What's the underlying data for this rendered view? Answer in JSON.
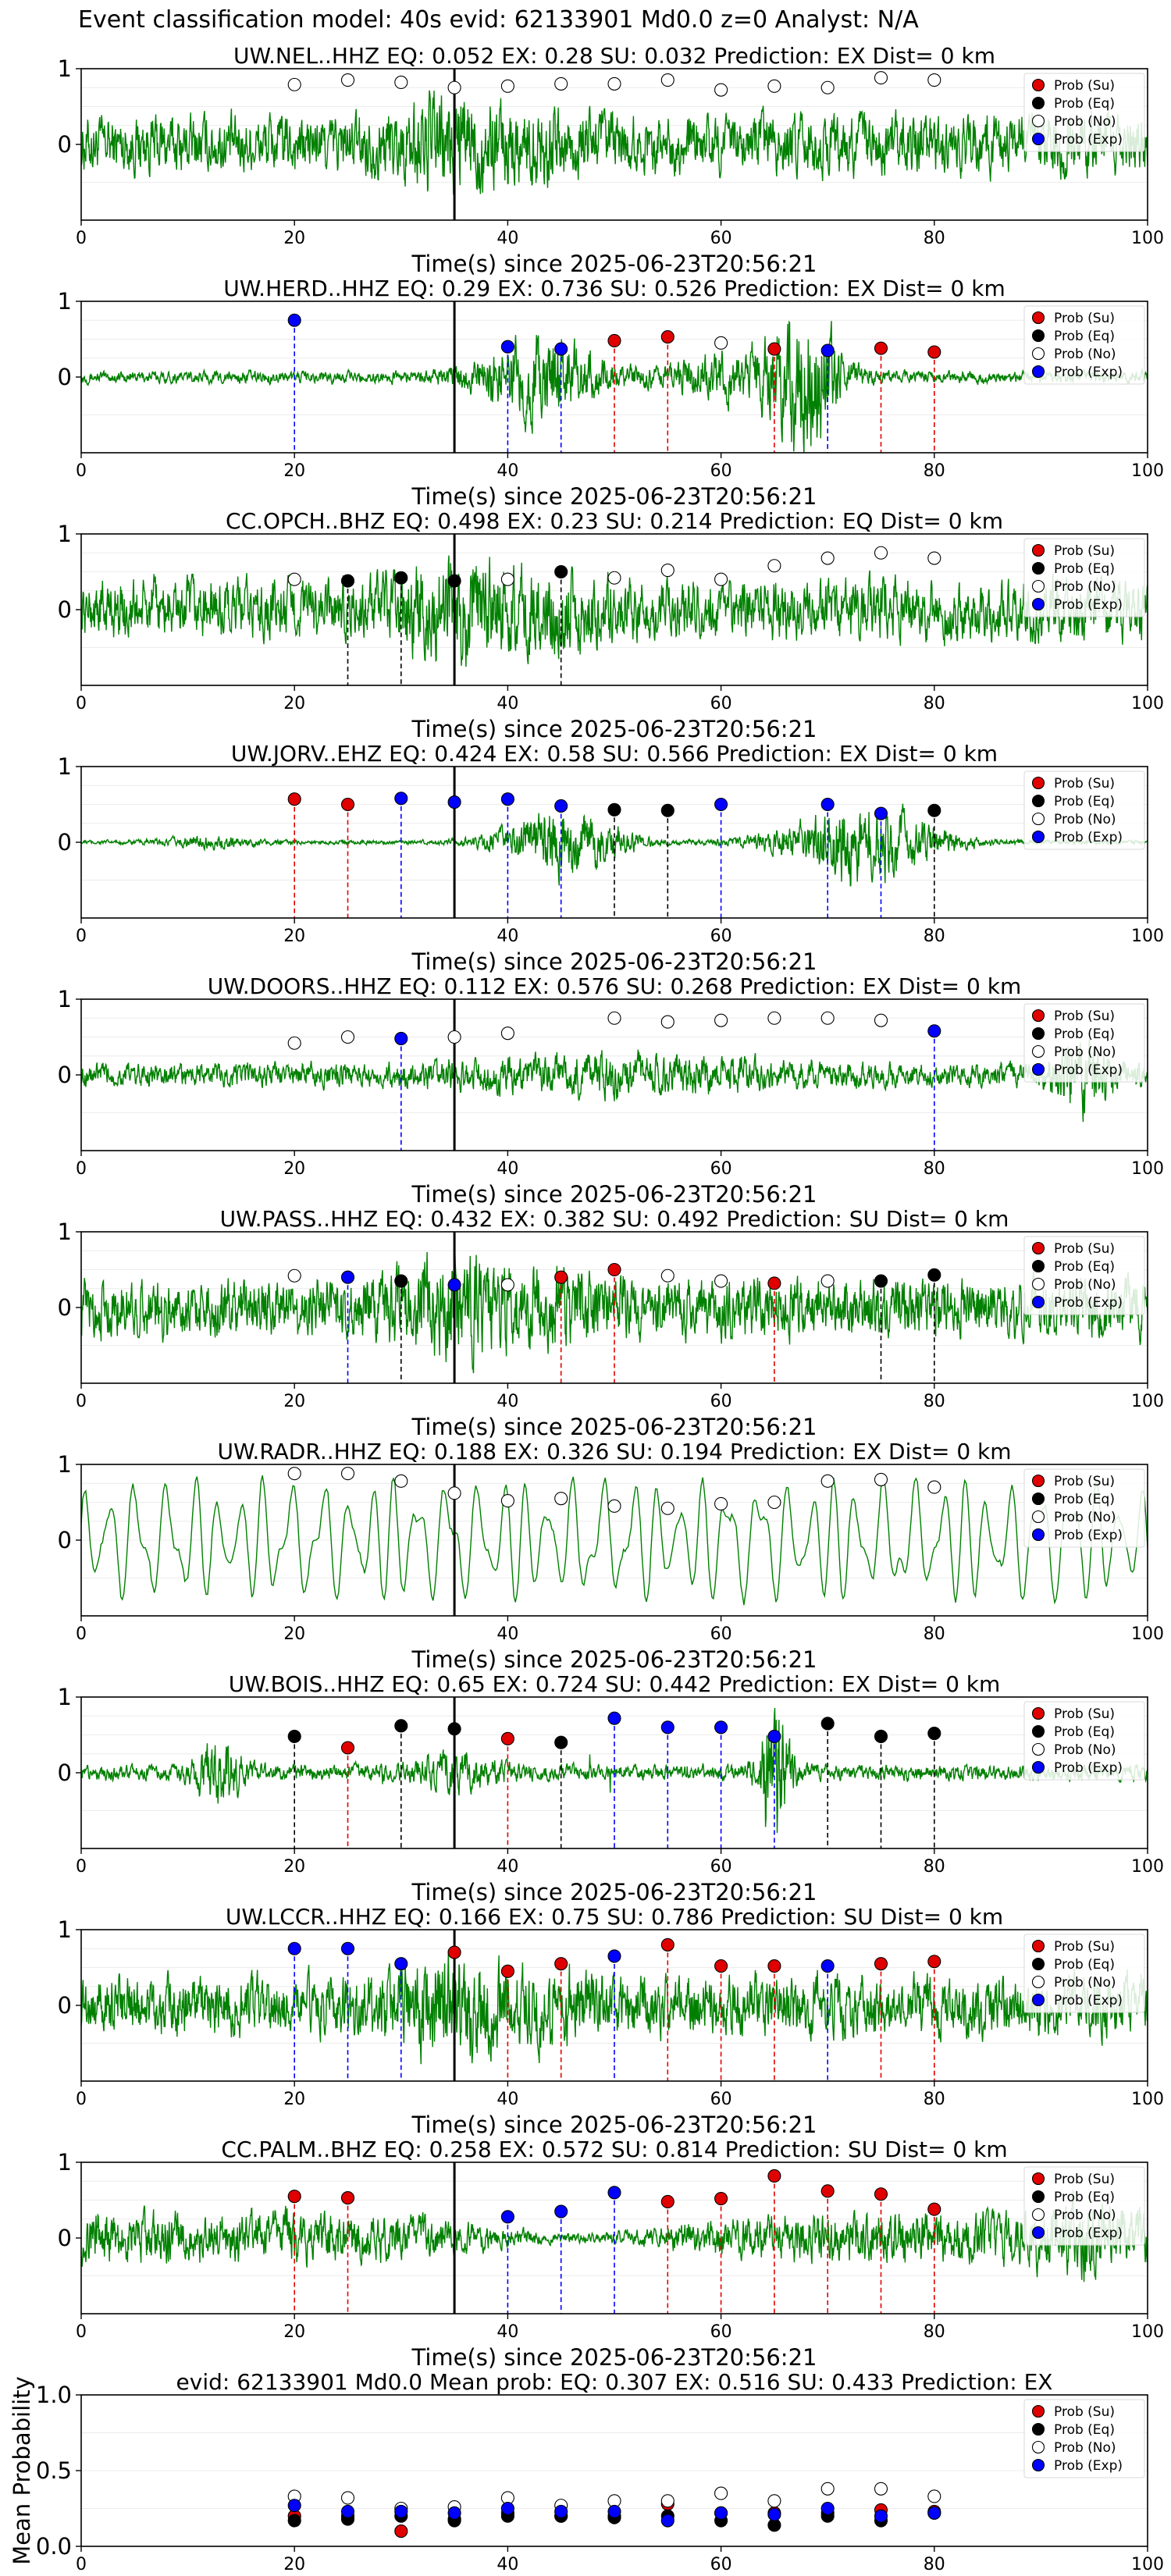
{
  "suptitle": "Event classification model: 40s evid: 62133901 Md0.0 z=0 Analyst: N/A",
  "colors": {
    "su": "#e00000",
    "eq": "#000000",
    "no": "#ffffff",
    "exp": "#0000ff",
    "trace": "#008000"
  },
  "legend_labels": [
    "Prob (Su)",
    "Prob (Eq)",
    "Prob (No)",
    "Prob (Exp)"
  ],
  "chart_data": [
    {
      "type": "line",
      "station": "UW.NEL..HHZ",
      "title": "UW.NEL..HHZ   EQ: 0.052  EX: 0.28  SU: 0.032   Prediction: EX    Dist= 0 km",
      "xlabel": "Time(s) since 2025-06-23T20:56:21",
      "xlim": [
        0,
        100
      ],
      "ylim": [
        -1,
        1
      ],
      "xticks": [
        0,
        20,
        40,
        60,
        80,
        100
      ],
      "yticks": [
        0,
        1
      ],
      "pick_time": 35,
      "trace_style": "noisy",
      "legend": "top-right",
      "grid": true,
      "points": [
        {
          "t": 20,
          "c": "no",
          "p": 0.79
        },
        {
          "t": 25,
          "c": "no",
          "p": 0.85
        },
        {
          "t": 30,
          "c": "no",
          "p": 0.82
        },
        {
          "t": 35,
          "c": "no",
          "p": 0.75
        },
        {
          "t": 40,
          "c": "no",
          "p": 0.77
        },
        {
          "t": 45,
          "c": "no",
          "p": 0.8
        },
        {
          "t": 50,
          "c": "no",
          "p": 0.8
        },
        {
          "t": 55,
          "c": "no",
          "p": 0.85
        },
        {
          "t": 60,
          "c": "no",
          "p": 0.72
        },
        {
          "t": 65,
          "c": "no",
          "p": 0.77
        },
        {
          "t": 70,
          "c": "no",
          "p": 0.75
        },
        {
          "t": 75,
          "c": "no",
          "p": 0.88
        },
        {
          "t": 80,
          "c": "no",
          "p": 0.85
        }
      ]
    },
    {
      "type": "line",
      "station": "UW.HERD..HHZ",
      "title": "UW.HERD..HHZ   EQ: 0.29  EX: 0.736  SU: 0.526   Prediction: EX    Dist= 0 km",
      "xlabel": "Time(s) since 2025-06-23T20:56:21",
      "xlim": [
        0,
        100
      ],
      "ylim": [
        -1,
        1
      ],
      "xticks": [
        0,
        20,
        40,
        60,
        80,
        100
      ],
      "yticks": [
        0,
        1
      ],
      "pick_time": 35,
      "trace_style": "burst",
      "legend": "top-right",
      "grid": true,
      "points": [
        {
          "t": 20,
          "c": "exp",
          "p": 0.75
        },
        {
          "t": 40,
          "c": "exp",
          "p": 0.4
        },
        {
          "t": 45,
          "c": "exp",
          "p": 0.37
        },
        {
          "t": 50,
          "c": "su",
          "p": 0.48
        },
        {
          "t": 55,
          "c": "su",
          "p": 0.53
        },
        {
          "t": 60,
          "c": "no",
          "p": 0.45
        },
        {
          "t": 65,
          "c": "su",
          "p": 0.37
        },
        {
          "t": 70,
          "c": "exp",
          "p": 0.35
        },
        {
          "t": 75,
          "c": "su",
          "p": 0.38
        },
        {
          "t": 80,
          "c": "su",
          "p": 0.33
        }
      ]
    },
    {
      "type": "line",
      "station": "CC.OPCH..BHZ",
      "title": "CC.OPCH..BHZ   EQ: 0.498  EX: 0.23  SU: 0.214   Prediction: EQ    Dist= 0 km",
      "xlabel": "Time(s) since 2025-06-23T20:56:21",
      "xlim": [
        0,
        100
      ],
      "ylim": [
        -1,
        1
      ],
      "xticks": [
        0,
        20,
        40,
        60,
        80,
        100
      ],
      "yticks": [
        0,
        1
      ],
      "pick_time": 35,
      "trace_style": "noisy",
      "legend": "top-right",
      "grid": true,
      "points": [
        {
          "t": 20,
          "c": "no",
          "p": 0.4
        },
        {
          "t": 25,
          "c": "eq",
          "p": 0.38
        },
        {
          "t": 30,
          "c": "eq",
          "p": 0.42
        },
        {
          "t": 35,
          "c": "eq",
          "p": 0.38
        },
        {
          "t": 40,
          "c": "no",
          "p": 0.4
        },
        {
          "t": 45,
          "c": "eq",
          "p": 0.5
        },
        {
          "t": 50,
          "c": "no",
          "p": 0.42
        },
        {
          "t": 55,
          "c": "no",
          "p": 0.52
        },
        {
          "t": 60,
          "c": "no",
          "p": 0.4
        },
        {
          "t": 65,
          "c": "no",
          "p": 0.58
        },
        {
          "t": 70,
          "c": "no",
          "p": 0.68
        },
        {
          "t": 75,
          "c": "no",
          "p": 0.75
        },
        {
          "t": 80,
          "c": "no",
          "p": 0.68
        }
      ]
    },
    {
      "type": "line",
      "station": "UW.JORV..EHZ",
      "title": "UW.JORV..EHZ   EQ: 0.424  EX: 0.58  SU: 0.566   Prediction: EX    Dist= 0 km",
      "xlabel": "Time(s) since 2025-06-23T20:56:21",
      "xlim": [
        0,
        100
      ],
      "ylim": [
        -1,
        1
      ],
      "xticks": [
        0,
        20,
        40,
        60,
        80,
        100
      ],
      "yticks": [
        0,
        1
      ],
      "pick_time": 35,
      "trace_style": "quiet",
      "legend": "top-right",
      "grid": true,
      "points": [
        {
          "t": 20,
          "c": "su",
          "p": 0.57
        },
        {
          "t": 25,
          "c": "su",
          "p": 0.5
        },
        {
          "t": 30,
          "c": "exp",
          "p": 0.58
        },
        {
          "t": 35,
          "c": "exp",
          "p": 0.53
        },
        {
          "t": 40,
          "c": "exp",
          "p": 0.57
        },
        {
          "t": 45,
          "c": "exp",
          "p": 0.48
        },
        {
          "t": 50,
          "c": "eq",
          "p": 0.43
        },
        {
          "t": 55,
          "c": "eq",
          "p": 0.42
        },
        {
          "t": 60,
          "c": "exp",
          "p": 0.5
        },
        {
          "t": 70,
          "c": "exp",
          "p": 0.5
        },
        {
          "t": 75,
          "c": "exp",
          "p": 0.38
        },
        {
          "t": 80,
          "c": "eq",
          "p": 0.42
        }
      ]
    },
    {
      "type": "line",
      "station": "UW.DOORS..HHZ",
      "title": "UW.DOORS..HHZ   EQ: 0.112  EX: 0.576  SU: 0.268   Prediction: EX    Dist= 0 km",
      "xlabel": "Time(s) since 2025-06-23T20:56:21",
      "xlim": [
        0,
        100
      ],
      "ylim": [
        -1,
        1
      ],
      "xticks": [
        0,
        20,
        40,
        60,
        80,
        100
      ],
      "yticks": [
        0,
        1
      ],
      "pick_time": 35,
      "trace_style": "medium",
      "legend": "top-right",
      "grid": true,
      "points": [
        {
          "t": 20,
          "c": "no",
          "p": 0.42
        },
        {
          "t": 25,
          "c": "no",
          "p": 0.5
        },
        {
          "t": 30,
          "c": "exp",
          "p": 0.48
        },
        {
          "t": 35,
          "c": "no",
          "p": 0.5
        },
        {
          "t": 40,
          "c": "no",
          "p": 0.55
        },
        {
          "t": 50,
          "c": "no",
          "p": 0.75
        },
        {
          "t": 55,
          "c": "no",
          "p": 0.7
        },
        {
          "t": 60,
          "c": "no",
          "p": 0.72
        },
        {
          "t": 65,
          "c": "no",
          "p": 0.75
        },
        {
          "t": 70,
          "c": "no",
          "p": 0.75
        },
        {
          "t": 75,
          "c": "no",
          "p": 0.72
        },
        {
          "t": 80,
          "c": "exp",
          "p": 0.58
        }
      ]
    },
    {
      "type": "line",
      "station": "UW.PASS..HHZ",
      "title": "UW.PASS..HHZ   EQ: 0.432  EX: 0.382  SU: 0.492   Prediction: SU    Dist= 0 km",
      "xlabel": "Time(s) since 2025-06-23T20:56:21",
      "xlim": [
        0,
        100
      ],
      "ylim": [
        -1,
        1
      ],
      "xticks": [
        0,
        20,
        40,
        60,
        80,
        100
      ],
      "yticks": [
        0,
        1
      ],
      "pick_time": 35,
      "trace_style": "noisy",
      "legend": "top-right",
      "grid": true,
      "points": [
        {
          "t": 20,
          "c": "no",
          "p": 0.42
        },
        {
          "t": 25,
          "c": "exp",
          "p": 0.4
        },
        {
          "t": 30,
          "c": "eq",
          "p": 0.35
        },
        {
          "t": 35,
          "c": "exp",
          "p": 0.3
        },
        {
          "t": 40,
          "c": "no",
          "p": 0.3
        },
        {
          "t": 45,
          "c": "su",
          "p": 0.4
        },
        {
          "t": 50,
          "c": "su",
          "p": 0.5
        },
        {
          "t": 55,
          "c": "no",
          "p": 0.42
        },
        {
          "t": 60,
          "c": "no",
          "p": 0.35
        },
        {
          "t": 65,
          "c": "su",
          "p": 0.32
        },
        {
          "t": 70,
          "c": "no",
          "p": 0.35
        },
        {
          "t": 75,
          "c": "eq",
          "p": 0.35
        },
        {
          "t": 80,
          "c": "eq",
          "p": 0.43
        }
      ]
    },
    {
      "type": "line",
      "station": "UW.RADR..HHZ",
      "title": "UW.RADR..HHZ   EQ: 0.188  EX: 0.326  SU: 0.194   Prediction: EX    Dist= 0 km",
      "xlabel": "Time(s) since 2025-06-23T20:56:21",
      "xlim": [
        0,
        100
      ],
      "ylim": [
        -1,
        1
      ],
      "xticks": [
        0,
        20,
        40,
        60,
        80,
        100
      ],
      "yticks": [
        0,
        1
      ],
      "pick_time": 35,
      "trace_style": "wave",
      "legend": "top-right",
      "grid": true,
      "points": [
        {
          "t": 20,
          "c": "no",
          "p": 0.88
        },
        {
          "t": 25,
          "c": "no",
          "p": 0.88
        },
        {
          "t": 30,
          "c": "no",
          "p": 0.78
        },
        {
          "t": 35,
          "c": "no",
          "p": 0.62
        },
        {
          "t": 40,
          "c": "no",
          "p": 0.52
        },
        {
          "t": 45,
          "c": "no",
          "p": 0.55
        },
        {
          "t": 50,
          "c": "no",
          "p": 0.45
        },
        {
          "t": 55,
          "c": "no",
          "p": 0.42
        },
        {
          "t": 60,
          "c": "no",
          "p": 0.48
        },
        {
          "t": 65,
          "c": "no",
          "p": 0.5
        },
        {
          "t": 70,
          "c": "no",
          "p": 0.78
        },
        {
          "t": 75,
          "c": "no",
          "p": 0.8
        },
        {
          "t": 80,
          "c": "no",
          "p": 0.7
        }
      ]
    },
    {
      "type": "line",
      "station": "UW.BOIS..HHZ",
      "title": "UW.BOIS..HHZ   EQ: 0.65  EX: 0.724  SU: 0.442   Prediction: EX    Dist= 0 km",
      "xlabel": "Time(s) since 2025-06-23T20:56:21",
      "xlim": [
        0,
        100
      ],
      "ylim": [
        -1,
        1
      ],
      "xticks": [
        0,
        20,
        40,
        60,
        80,
        100
      ],
      "yticks": [
        0,
        1
      ],
      "pick_time": 35,
      "trace_style": "spiky",
      "legend": "top-right",
      "grid": true,
      "points": [
        {
          "t": 20,
          "c": "eq",
          "p": 0.48
        },
        {
          "t": 25,
          "c": "su",
          "p": 0.33
        },
        {
          "t": 30,
          "c": "eq",
          "p": 0.62
        },
        {
          "t": 35,
          "c": "eq",
          "p": 0.58
        },
        {
          "t": 40,
          "c": "su",
          "p": 0.45
        },
        {
          "t": 45,
          "c": "eq",
          "p": 0.4
        },
        {
          "t": 50,
          "c": "exp",
          "p": 0.72
        },
        {
          "t": 55,
          "c": "exp",
          "p": 0.6
        },
        {
          "t": 60,
          "c": "exp",
          "p": 0.6
        },
        {
          "t": 65,
          "c": "exp",
          "p": 0.48
        },
        {
          "t": 70,
          "c": "eq",
          "p": 0.65
        },
        {
          "t": 75,
          "c": "eq",
          "p": 0.48
        },
        {
          "t": 80,
          "c": "eq",
          "p": 0.52
        }
      ]
    },
    {
      "type": "line",
      "station": "UW.LCCR..HHZ",
      "title": "UW.LCCR..HHZ   EQ: 0.166  EX: 0.75  SU: 0.786   Prediction: SU    Dist= 0 km",
      "xlabel": "Time(s) since 2025-06-23T20:56:21",
      "xlim": [
        0,
        100
      ],
      "ylim": [
        -1,
        1
      ],
      "xticks": [
        0,
        20,
        40,
        60,
        80,
        100
      ],
      "yticks": [
        0,
        1
      ],
      "pick_time": 35,
      "trace_style": "noisy",
      "legend": "top-right",
      "grid": true,
      "points": [
        {
          "t": 20,
          "c": "exp",
          "p": 0.75
        },
        {
          "t": 25,
          "c": "exp",
          "p": 0.75
        },
        {
          "t": 30,
          "c": "exp",
          "p": 0.55
        },
        {
          "t": 35,
          "c": "su",
          "p": 0.7
        },
        {
          "t": 40,
          "c": "su",
          "p": 0.45
        },
        {
          "t": 45,
          "c": "su",
          "p": 0.55
        },
        {
          "t": 50,
          "c": "exp",
          "p": 0.65
        },
        {
          "t": 55,
          "c": "su",
          "p": 0.8
        },
        {
          "t": 60,
          "c": "su",
          "p": 0.52
        },
        {
          "t": 65,
          "c": "su",
          "p": 0.52
        },
        {
          "t": 70,
          "c": "exp",
          "p": 0.52
        },
        {
          "t": 75,
          "c": "su",
          "p": 0.55
        },
        {
          "t": 80,
          "c": "su",
          "p": 0.58
        }
      ]
    },
    {
      "type": "line",
      "station": "CC.PALM..BHZ",
      "title": "CC.PALM..BHZ   EQ: 0.258  EX: 0.572  SU: 0.814   Prediction: SU    Dist= 0 km",
      "xlabel": "Time(s) since 2025-06-23T20:56:21",
      "xlim": [
        0,
        100
      ],
      "ylim": [
        -1,
        1
      ],
      "xticks": [
        0,
        20,
        40,
        60,
        80,
        100
      ],
      "yticks": [
        0,
        1
      ],
      "pick_time": 35,
      "trace_style": "quietmid",
      "legend": "top-right",
      "grid": true,
      "points": [
        {
          "t": 20,
          "c": "su",
          "p": 0.55
        },
        {
          "t": 25,
          "c": "su",
          "p": 0.53
        },
        {
          "t": 40,
          "c": "exp",
          "p": 0.28
        },
        {
          "t": 45,
          "c": "exp",
          "p": 0.35
        },
        {
          "t": 50,
          "c": "exp",
          "p": 0.6
        },
        {
          "t": 55,
          "c": "su",
          "p": 0.48
        },
        {
          "t": 60,
          "c": "su",
          "p": 0.52
        },
        {
          "t": 65,
          "c": "su",
          "p": 0.82
        },
        {
          "t": 70,
          "c": "su",
          "p": 0.62
        },
        {
          "t": 75,
          "c": "su",
          "p": 0.58
        },
        {
          "t": 80,
          "c": "su",
          "p": 0.38
        }
      ]
    },
    {
      "type": "scatter",
      "title": "evid: 62133901  Md0.0   Mean prob:   EQ: 0.307  EX: 0.516  SU: 0.433   Prediction: EX",
      "ylabel": "Mean Probability",
      "xlim": [
        0,
        100
      ],
      "ylim": [
        0,
        1
      ],
      "xticks": [
        0,
        20,
        40,
        60,
        80,
        100
      ],
      "yticks": [
        0.0,
        0.5,
        1.0
      ],
      "ytick_labels": [
        "0.0",
        "0.5",
        "1.0"
      ],
      "legend": "top-right",
      "grid": true,
      "x": [
        20,
        25,
        30,
        35,
        40,
        45,
        50,
        55,
        60,
        65,
        70,
        75,
        80
      ],
      "series": [
        {
          "name": "Prob (Su)",
          "key": "su",
          "values": [
            0.2,
            0.2,
            0.1,
            0.18,
            0.22,
            0.2,
            0.2,
            0.28,
            0.22,
            0.22,
            0.22,
            0.24,
            0.23
          ]
        },
        {
          "name": "Prob (Eq)",
          "key": "eq",
          "values": [
            0.17,
            0.18,
            0.2,
            0.17,
            0.2,
            0.2,
            0.19,
            0.2,
            0.17,
            0.14,
            0.2,
            0.17,
            0.22
          ]
        },
        {
          "name": "Prob (No)",
          "key": "no",
          "values": [
            0.33,
            0.32,
            0.25,
            0.26,
            0.32,
            0.27,
            0.3,
            0.3,
            0.35,
            0.3,
            0.38,
            0.38,
            0.33
          ]
        },
        {
          "name": "Prob (Exp)",
          "key": "exp",
          "values": [
            0.27,
            0.23,
            0.23,
            0.22,
            0.25,
            0.23,
            0.23,
            0.17,
            0.22,
            0.21,
            0.25,
            0.2,
            0.22
          ]
        }
      ]
    }
  ]
}
